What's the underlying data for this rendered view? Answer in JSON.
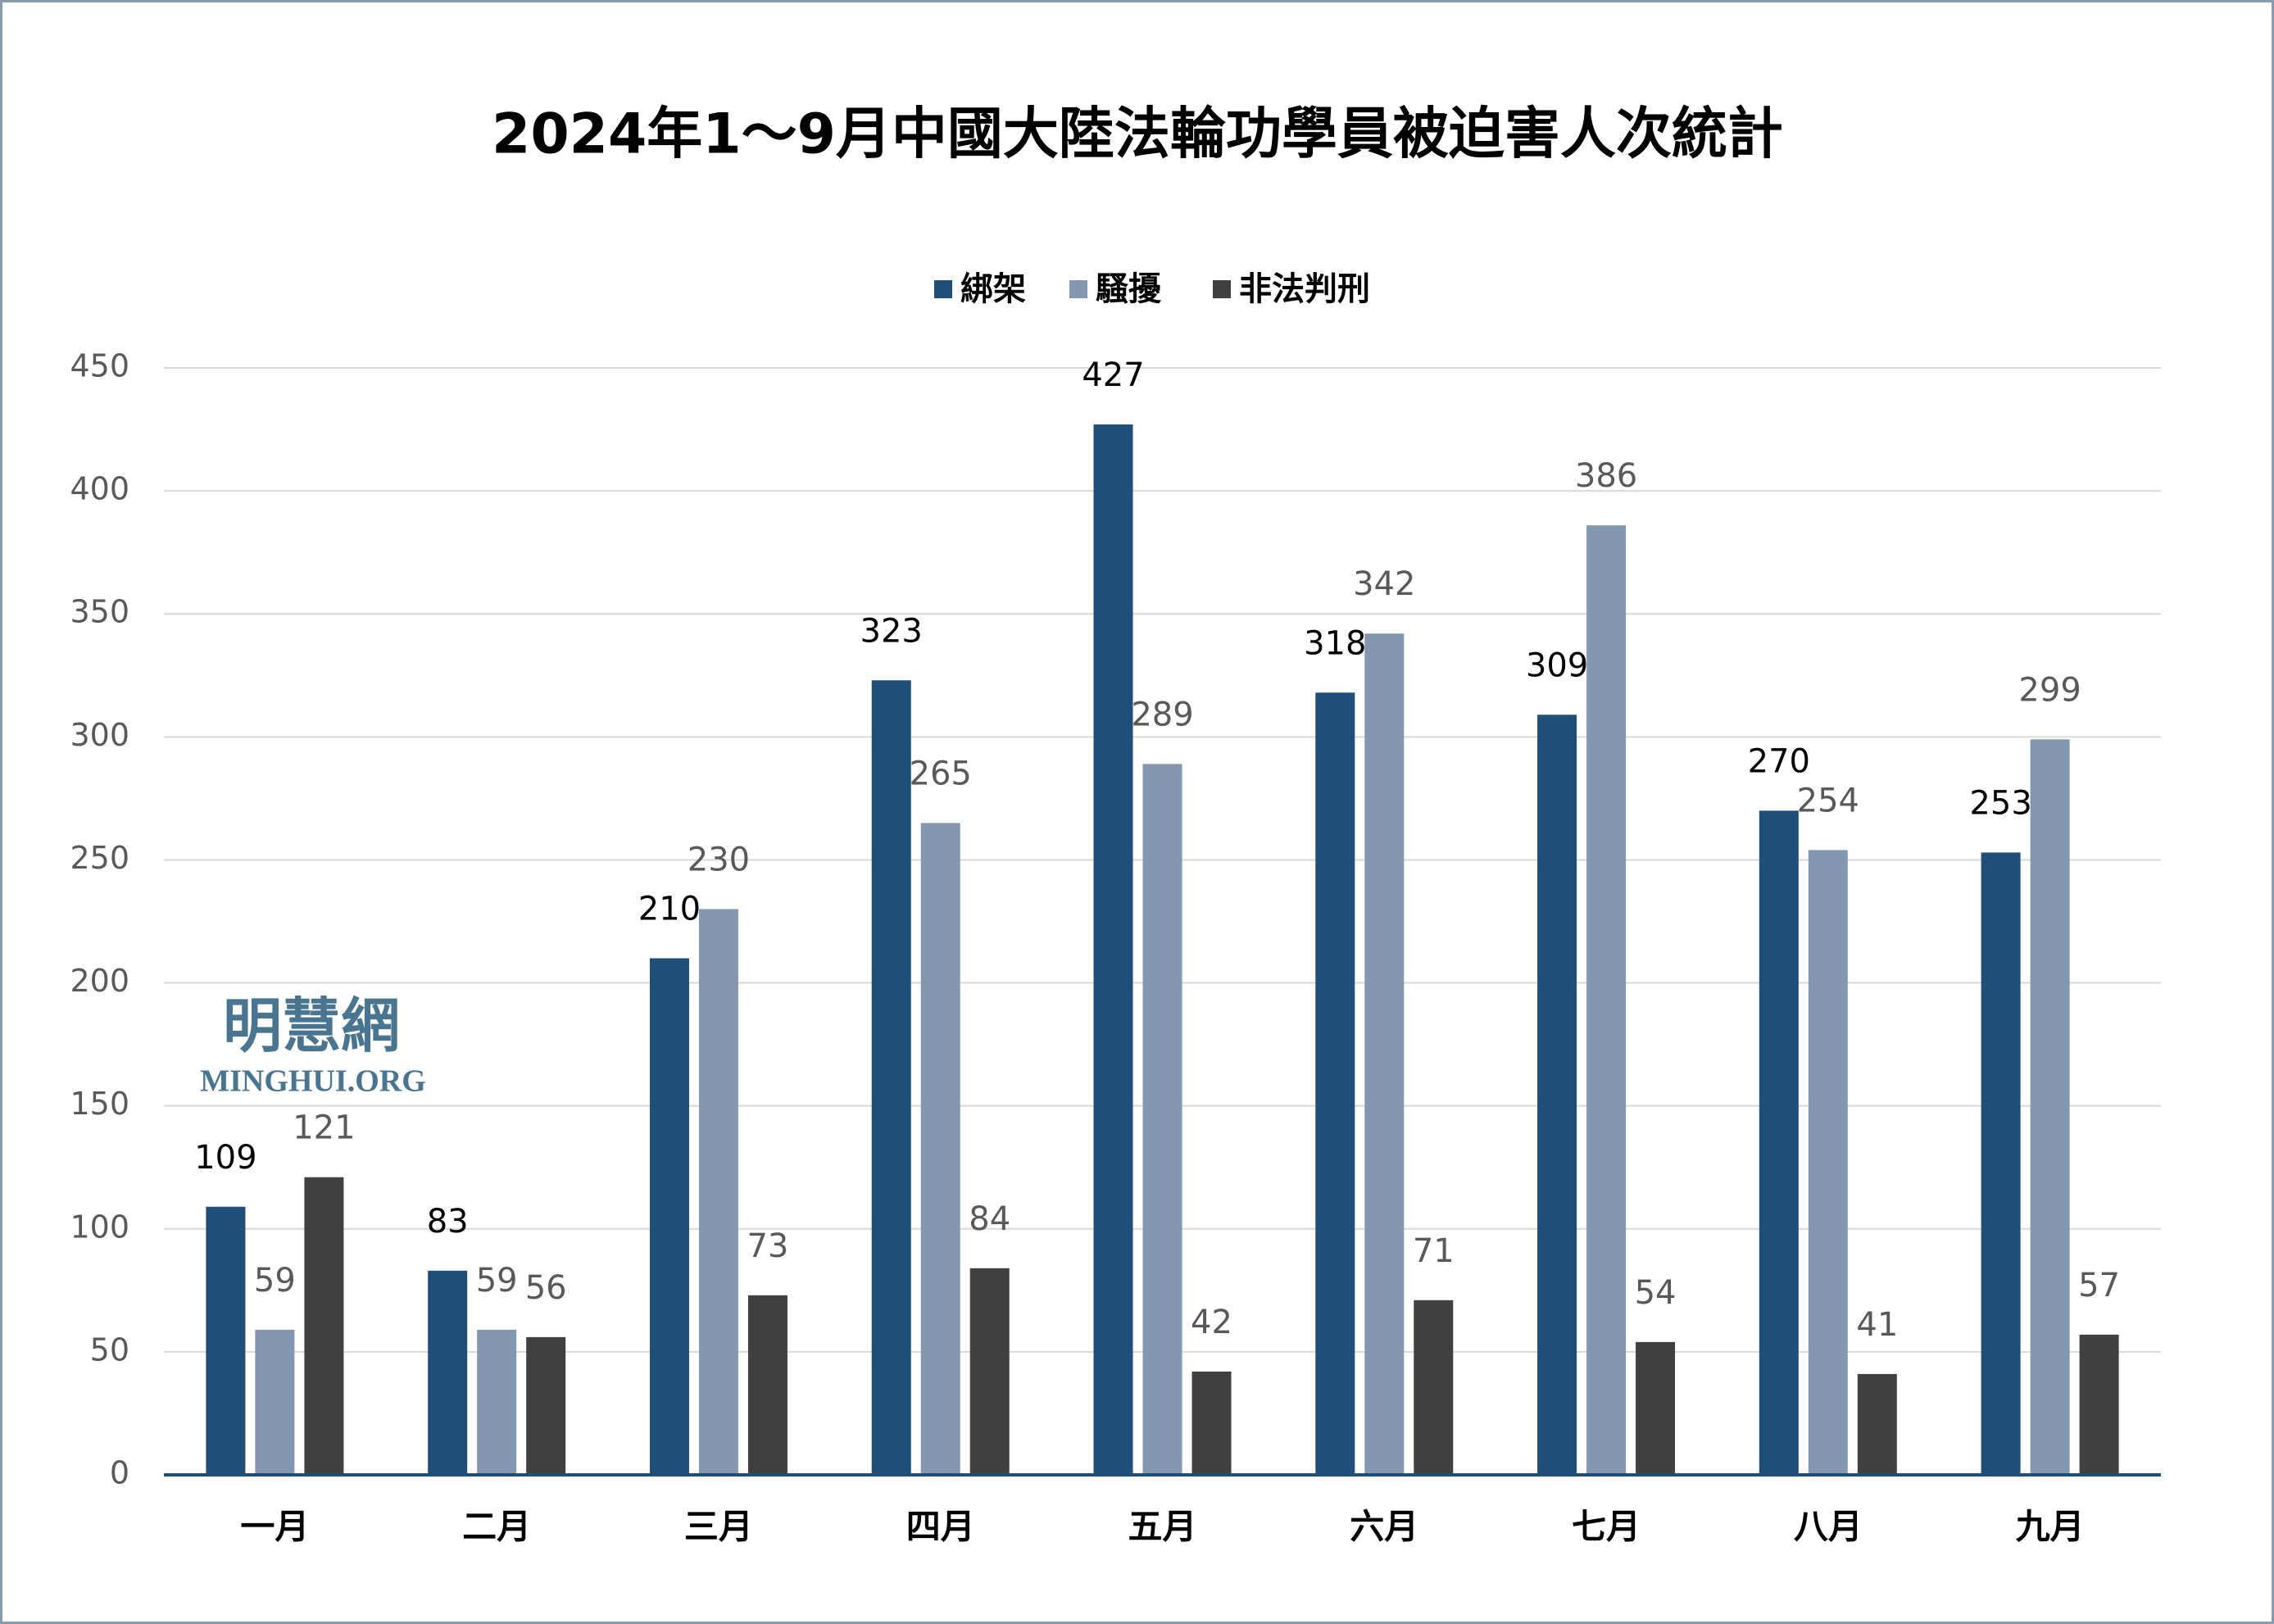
{
  "chart_data": {
    "type": "bar",
    "title": "2024年1～9月中國大陸法輪功學員被迫害人次統計",
    "categories": [
      "一月",
      "二月",
      "三月",
      "四月",
      "五月",
      "六月",
      "七月",
      "八月",
      "九月"
    ],
    "series": [
      {
        "name": "綁架",
        "color": "#1f4e79",
        "values": [
          109,
          83,
          210,
          323,
          427,
          318,
          309,
          270,
          253
        ]
      },
      {
        "name": "騷擾",
        "color": "#8497b0",
        "values": [
          59,
          59,
          230,
          265,
          289,
          342,
          386,
          254,
          299
        ]
      },
      {
        "name": "非法判刑",
        "color": "#404040",
        "values": [
          121,
          56,
          73,
          84,
          42,
          71,
          54,
          41,
          57
        ]
      }
    ],
    "ylim": [
      0,
      450
    ],
    "yticks": [
      0,
      50,
      100,
      150,
      200,
      250,
      300,
      350,
      400,
      450
    ],
    "grid": true,
    "legend": "top",
    "annotations": [
      "明慧網",
      "MINGHUI.ORG"
    ]
  }
}
